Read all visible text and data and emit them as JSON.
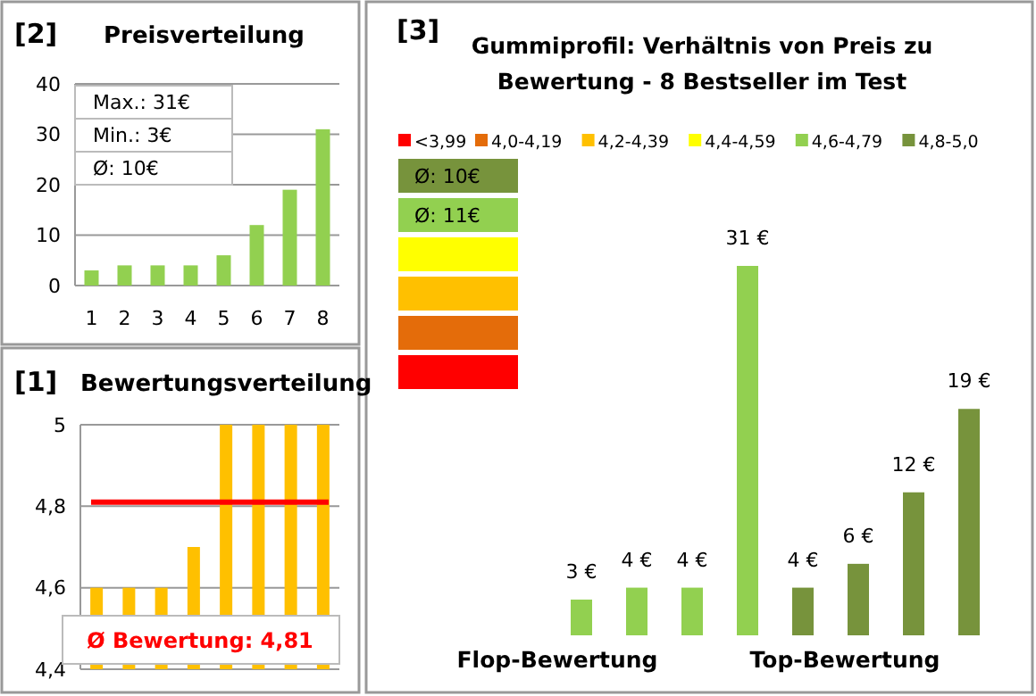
{
  "chart_data": [
    {
      "type": "bar",
      "title": "Preisverteilung",
      "categories": [
        "1",
        "2",
        "3",
        "4",
        "5",
        "6",
        "7",
        "8"
      ],
      "values": [
        3,
        4,
        4,
        4,
        6,
        12,
        19,
        31
      ],
      "color": "#92d050",
      "ylim": [
        0,
        40
      ],
      "yticks": [
        0,
        10,
        20,
        30,
        40
      ],
      "grid": "y",
      "annotations": [
        "[2]",
        "Max.: 31€",
        "Min.: 3€",
        "Ø: 10€"
      ]
    },
    {
      "type": "bar",
      "title": "Bewertungsverteilung",
      "categories": [
        null,
        null,
        null,
        null,
        null,
        null,
        null,
        null
      ],
      "values": [
        4.6,
        4.6,
        4.6,
        4.7,
        5,
        5,
        5,
        5
      ],
      "color": "#ffc000",
      "ylim": [
        4.4,
        5
      ],
      "yticks": [
        {
          "value": 4.4,
          "label": "4,4"
        },
        {
          "value": 4.6,
          "label": "4,6"
        },
        {
          "value": 4.8,
          "label": "4,8"
        },
        {
          "value": 5,
          "label": "5"
        }
      ],
      "grid": "y",
      "ref_lines": [
        {
          "axis": "y",
          "value": 4.81,
          "label": "Ø Bewertung: 4,81",
          "color": "#ff0000"
        }
      ],
      "annotations": [
        "[1]"
      ]
    },
    {
      "type": "bar",
      "title": "Gummiprofil: Verhältnis von Preis zu Bewertung - 8 Bestseller im Test",
      "categories": [
        null,
        null,
        null,
        null,
        null,
        null,
        null,
        null
      ],
      "values": [
        3,
        4,
        4,
        31,
        4,
        6,
        12,
        19
      ],
      "value_labels": [
        "3 €",
        "4 €",
        "4 €",
        "31 €",
        "4 €",
        "6 €",
        "12 €",
        "19 €"
      ],
      "colors": [
        "#92d050",
        "#92d050",
        "#92d050",
        "#92d050",
        "#77933c",
        "#77933c",
        "#77933c",
        "#77933c"
      ],
      "annotations": [
        "[3]",
        "Flop-Bewertung",
        "Top-Bewertung"
      ]
    },
    {
      "type": "other",
      "categories": [
        "<3,99",
        "4,0-4,19",
        "4,2-4,39",
        "4,4-4,59",
        "4,6-4,79",
        "4,8-5,0"
      ],
      "colors": [
        "#ff0000",
        "#e46c0a",
        "#ffc000",
        "#ffff00",
        "#92d050",
        "#77933c"
      ],
      "annotations": [
        "Ø: 10€",
        "Ø: 11€"
      ]
    }
  ]
}
